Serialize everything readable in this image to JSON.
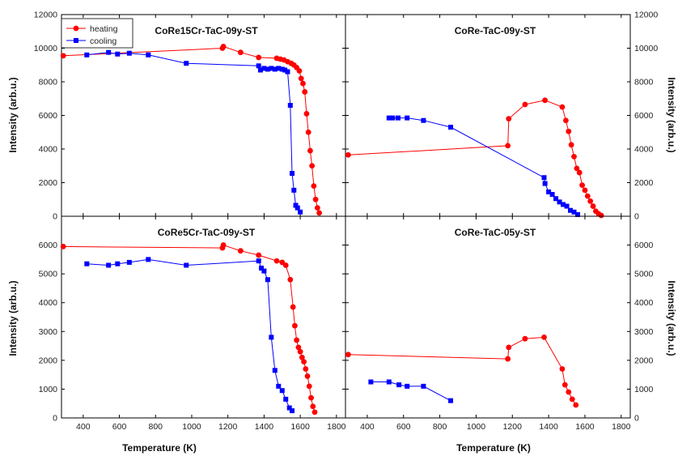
{
  "figure": {
    "colors": {
      "heating": "#ff0000",
      "cooling": "#0000ff",
      "axis": "#000000"
    },
    "legend": {
      "placement": "top-left",
      "heating_label": "heating",
      "cooling_label": "cooling"
    },
    "xlabel": "Temperature (K)",
    "ylabel": "Intensity (arb.u.)"
  },
  "chart_data": [
    {
      "type": "line",
      "title": "CoRe15Cr-TaC-09y-ST",
      "xlim": [
        280,
        1850
      ],
      "ylim": [
        0,
        12000
      ],
      "xticks": [
        400,
        600,
        800,
        1000,
        1200,
        1400,
        1600,
        1800
      ],
      "yticks": [
        0,
        2000,
        4000,
        6000,
        8000,
        10000,
        12000
      ],
      "series": [
        {
          "name": "heating",
          "marker": "circle",
          "x": [
            290,
            1170,
            1175,
            1270,
            1370,
            1470,
            1490,
            1510,
            1530,
            1550,
            1565,
            1580,
            1595,
            1605,
            1615,
            1625,
            1635,
            1645,
            1655,
            1665,
            1675,
            1685,
            1695,
            1705
          ],
          "y": [
            9550,
            10000,
            10100,
            9750,
            9450,
            9400,
            9350,
            9300,
            9200,
            9100,
            9000,
            8850,
            8650,
            8200,
            7900,
            7400,
            6100,
            5000,
            3900,
            3000,
            1800,
            1000,
            500,
            200
          ]
        },
        {
          "name": "cooling",
          "marker": "square",
          "x": [
            420,
            540,
            590,
            655,
            760,
            970,
            1370,
            1380,
            1400,
            1420,
            1440,
            1460,
            1480,
            1500,
            1515,
            1530,
            1545,
            1555,
            1565,
            1575,
            1585,
            1600
          ],
          "y": [
            9600,
            9750,
            9650,
            9700,
            9600,
            9100,
            8950,
            8700,
            8800,
            8750,
            8800,
            8750,
            8800,
            8750,
            8700,
            8600,
            6600,
            2550,
            1550,
            650,
            500,
            250
          ]
        }
      ]
    },
    {
      "type": "line",
      "title": "CoRe-TaC-09y-ST",
      "xlim": [
        280,
        1850
      ],
      "ylim": [
        0,
        12000
      ],
      "xticks": [
        400,
        600,
        800,
        1000,
        1200,
        1400,
        1600,
        1800
      ],
      "yticks": [
        0,
        2000,
        4000,
        6000,
        8000,
        10000,
        12000
      ],
      "series": [
        {
          "name": "heating",
          "marker": "circle",
          "x": [
            295,
            1175,
            1180,
            1270,
            1380,
            1475,
            1495,
            1510,
            1525,
            1540,
            1555,
            1570,
            1585,
            1600,
            1615,
            1630,
            1645,
            1660,
            1675,
            1690
          ],
          "y": [
            3650,
            4200,
            5800,
            6650,
            6900,
            6500,
            5700,
            5050,
            4250,
            3550,
            2850,
            2600,
            1850,
            1550,
            1200,
            900,
            600,
            300,
            150,
            50
          ]
        },
        {
          "name": "cooling",
          "marker": "square",
          "x": [
            520,
            540,
            570,
            620,
            710,
            860,
            1375,
            1380,
            1400,
            1420,
            1440,
            1460,
            1480,
            1500,
            1520,
            1540,
            1560
          ],
          "y": [
            5850,
            5850,
            5850,
            5850,
            5700,
            5300,
            2300,
            1950,
            1450,
            1300,
            1050,
            850,
            700,
            600,
            350,
            250,
            100
          ]
        }
      ]
    },
    {
      "type": "line",
      "title": "CoRe5Cr-TaC-09y-ST",
      "xlim": [
        280,
        1850
      ],
      "ylim": [
        0,
        7000
      ],
      "xticks": [
        400,
        600,
        800,
        1000,
        1200,
        1400,
        1600,
        1800
      ],
      "yticks": [
        0,
        1000,
        2000,
        3000,
        4000,
        5000,
        6000
      ],
      "series": [
        {
          "name": "heating",
          "marker": "circle",
          "x": [
            290,
            1170,
            1175,
            1270,
            1370,
            1470,
            1500,
            1520,
            1545,
            1560,
            1570,
            1580,
            1590,
            1600,
            1610,
            1620,
            1630,
            1640,
            1650,
            1660,
            1670,
            1680
          ],
          "y": [
            5950,
            5900,
            6000,
            5800,
            5650,
            5450,
            5400,
            5300,
            4800,
            3850,
            3200,
            2700,
            2450,
            2300,
            2100,
            1950,
            1700,
            1450,
            1100,
            700,
            400,
            200
          ]
        },
        {
          "name": "cooling",
          "marker": "square",
          "x": [
            420,
            540,
            590,
            655,
            760,
            970,
            1370,
            1385,
            1400,
            1420,
            1440,
            1460,
            1480,
            1500,
            1520,
            1540,
            1555
          ],
          "y": [
            5350,
            5300,
            5350,
            5400,
            5500,
            5300,
            5450,
            5200,
            5100,
            4800,
            2800,
            1650,
            1100,
            950,
            650,
            350,
            250
          ]
        }
      ]
    },
    {
      "type": "line",
      "title": "CoRe-TaC-05y-ST",
      "xlim": [
        280,
        1850
      ],
      "ylim": [
        0,
        7000
      ],
      "xticks": [
        400,
        600,
        800,
        1000,
        1200,
        1400,
        1600,
        1800
      ],
      "yticks": [
        0,
        1000,
        2000,
        3000,
        4000,
        5000,
        6000
      ],
      "series": [
        {
          "name": "heating",
          "marker": "circle",
          "x": [
            295,
            1175,
            1180,
            1270,
            1375,
            1475,
            1490,
            1510,
            1530,
            1550
          ],
          "y": [
            2200,
            2050,
            2450,
            2750,
            2800,
            1700,
            1150,
            900,
            650,
            450
          ]
        },
        {
          "name": "cooling",
          "marker": "square",
          "x": [
            420,
            520,
            575,
            620,
            710,
            860
          ],
          "y": [
            1250,
            1250,
            1150,
            1100,
            1100,
            600
          ]
        }
      ]
    }
  ]
}
